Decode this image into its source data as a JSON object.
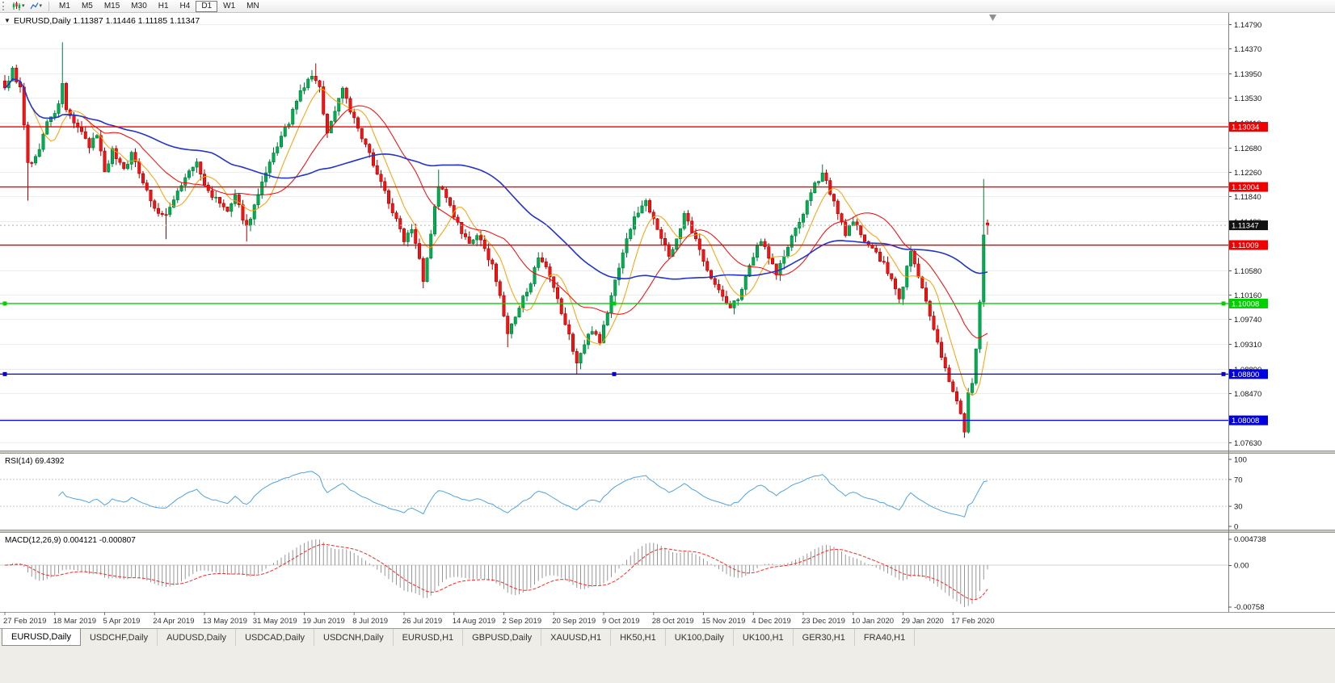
{
  "toolbar": {
    "timeframes": [
      "M1",
      "M5",
      "M15",
      "M30",
      "H1",
      "H4",
      "D1",
      "W1",
      "MN"
    ],
    "active_timeframe": "D1"
  },
  "icons": {
    "symbol_menu": "▼",
    "caret": "▾"
  },
  "panes": {
    "main_header": "EURUSD,Daily 1.11387 1.11446 1.11185 1.11347",
    "rsi_header": "RSI(14) 69.4392",
    "macd_header": "MACD(12,26,9) 0.004121 -0.000807"
  },
  "tabs": {
    "items": [
      {
        "label": "EURUSD,Daily",
        "active": true
      },
      {
        "label": "USDCHF,Daily"
      },
      {
        "label": "AUDUSD,Daily"
      },
      {
        "label": "USDCAD,Daily"
      },
      {
        "label": "USDCNH,Daily"
      },
      {
        "label": "EURUSD,H1"
      },
      {
        "label": "GBPUSD,Daily"
      },
      {
        "label": "XAUUSD,H1"
      },
      {
        "label": "HK50,H1"
      },
      {
        "label": "UK100,Daily"
      },
      {
        "label": "UK100,H1"
      },
      {
        "label": "GER30,H1"
      },
      {
        "label": "FRA40,H1"
      }
    ]
  },
  "chart_data": {
    "type": "candlestick",
    "symbol": "EURUSD",
    "timeframe": "Daily",
    "current_bar": {
      "open": 1.11387,
      "high": 1.11446,
      "low": 1.11185,
      "close": 1.11347
    },
    "y_axis": {
      "max": 1.1479,
      "min": 1.0763,
      "tick_labels": [
        "1.14790",
        "1.14370",
        "1.13950",
        "1.13530",
        "1.13110",
        "1.12680",
        "1.12260",
        "1.11840",
        "1.11420",
        "1.11000",
        "1.10580",
        "1.10160",
        "1.09740",
        "1.09310",
        "1.08890",
        "1.08470",
        "1.08050",
        "1.07630"
      ]
    },
    "x_axis": {
      "labels": [
        "27 Feb 2019",
        "18 Mar 2019",
        "5 Apr 2019",
        "24 Apr 2019",
        "13 May 2019",
        "31 May 2019",
        "19 Jun 2019",
        "8 Jul 2019",
        "26 Jul 2019",
        "14 Aug 2019",
        "2 Sep 2019",
        "20 Sep 2019",
        "9 Oct 2019",
        "28 Oct 2019",
        "15 Nov 2019",
        "4 Dec 2019",
        "23 Dec 2019",
        "10 Jan 2020",
        "29 Jan 2020",
        "17 Feb 2020"
      ],
      "bars_per_label": 13
    },
    "levels": [
      {
        "price": 1.13034,
        "label": "1.13034",
        "color": "#f00000"
      },
      {
        "price": 1.12004,
        "label": "1.12004",
        "color": "#f00000"
      },
      {
        "price": 1.11009,
        "label": "1.11009",
        "color": "#f00000"
      },
      {
        "price": 1.10008,
        "label": "1.10008",
        "color": "#00d000",
        "handles": true
      },
      {
        "price": 1.088,
        "label": "1.08800",
        "color": "#0000e0",
        "handles": true
      },
      {
        "price": 1.08008,
        "label": "1.08008",
        "color": "#0000e0"
      }
    ],
    "current_price": {
      "value": 1.11347,
      "label": "1.11347",
      "color": "#111111"
    },
    "candles": {
      "count": 257,
      "seed": 9,
      "anchors": [
        [
          0,
          1.137
        ],
        [
          2,
          1.14
        ],
        [
          4,
          1.1368
        ],
        [
          6,
          1.124
        ],
        [
          8,
          1.1248
        ],
        [
          11,
          1.131
        ],
        [
          14,
          1.1338
        ],
        [
          15,
          1.138
        ],
        [
          16,
          1.133
        ],
        [
          19,
          1.1302
        ],
        [
          22,
          1.1268
        ],
        [
          24,
          1.1292
        ],
        [
          26,
          1.1228
        ],
        [
          28,
          1.1262
        ],
        [
          31,
          1.1232
        ],
        [
          33,
          1.1256
        ],
        [
          36,
          1.1212
        ],
        [
          39,
          1.1162
        ],
        [
          42,
          1.1148
        ],
        [
          44,
          1.1182
        ],
        [
          47,
          1.1216
        ],
        [
          50,
          1.1242
        ],
        [
          52,
          1.1202
        ],
        [
          55,
          1.1178
        ],
        [
          58,
          1.1158
        ],
        [
          60,
          1.1182
        ],
        [
          63,
          1.1132
        ],
        [
          65,
          1.1168
        ],
        [
          68,
          1.1222
        ],
        [
          71,
          1.1272
        ],
        [
          74,
          1.1312
        ],
        [
          77,
          1.1362
        ],
        [
          80,
          1.1392
        ],
        [
          82,
          1.1368
        ],
        [
          84,
          1.1292
        ],
        [
          86,
          1.1332
        ],
        [
          88,
          1.1372
        ],
        [
          90,
          1.1332
        ],
        [
          93,
          1.1282
        ],
        [
          96,
          1.1242
        ],
        [
          99,
          1.1192
        ],
        [
          102,
          1.1142
        ],
        [
          104,
          1.1112
        ],
        [
          106,
          1.1132
        ],
        [
          108,
          1.1082
        ],
        [
          109,
          1.1042
        ],
        [
          111,
          1.1122
        ],
        [
          113,
          1.1205
        ],
        [
          115,
          1.118
        ],
        [
          117,
          1.115
        ],
        [
          119,
          1.112
        ],
        [
          121,
          1.11
        ],
        [
          123,
          1.112
        ],
        [
          125,
          1.109
        ],
        [
          127,
          1.107
        ],
        [
          129,
          1.101
        ],
        [
          131,
          1.095
        ],
        [
          133,
          1.0975
        ],
        [
          135,
          1.101
        ],
        [
          137,
          1.104
        ],
        [
          139,
          1.1075
        ],
        [
          141,
          1.106
        ],
        [
          143,
          1.1025
        ],
        [
          145,
          1.0985
        ],
        [
          147,
          1.0945
        ],
        [
          149,
          1.09
        ],
        [
          151,
          1.093
        ],
        [
          153,
          1.0958
        ],
        [
          155,
          1.0938
        ],
        [
          157,
          1.0985
        ],
        [
          159,
          1.104
        ],
        [
          161,
          1.109
        ],
        [
          163,
          1.113
        ],
        [
          165,
          1.116
        ],
        [
          167,
          1.1175
        ],
        [
          169,
          1.115
        ],
        [
          171,
          1.1112
        ],
        [
          173,
          1.1082
        ],
        [
          175,
          1.1112
        ],
        [
          177,
          1.1152
        ],
        [
          179,
          1.1122
        ],
        [
          181,
          1.1092
        ],
        [
          183,
          1.1062
        ],
        [
          185,
          1.1032
        ],
        [
          187,
          1.1012
        ],
        [
          189,
          1.0992
        ],
        [
          191,
          1.1012
        ],
        [
          193,
          1.1042
        ],
        [
          195,
          1.1082
        ],
        [
          197,
          1.1112
        ],
        [
          199,
          1.1082
        ],
        [
          201,
          1.1052
        ],
        [
          203,
          1.1082
        ],
        [
          205,
          1.1112
        ],
        [
          207,
          1.1142
        ],
        [
          209,
          1.1172
        ],
        [
          211,
          1.1202
        ],
        [
          213,
          1.1228
        ],
        [
          215,
          1.1192
        ],
        [
          217,
          1.1152
        ],
        [
          219,
          1.1122
        ],
        [
          221,
          1.1138
        ],
        [
          223,
          1.1122
        ],
        [
          225,
          1.1102
        ],
        [
          227,
          1.1086
        ],
        [
          229,
          1.1066
        ],
        [
          231,
          1.1042
        ],
        [
          233,
          1.1006
        ],
        [
          236,
          1.109
        ],
        [
          238,
          1.1048
        ],
        [
          240,
          1.1002
        ],
        [
          242,
          1.0952
        ],
        [
          244,
          1.0912
        ],
        [
          246,
          1.0872
        ],
        [
          248,
          1.0832
        ],
        [
          250,
          1.0786
        ],
        [
          251,
          1.0846
        ],
        [
          252,
          1.0866
        ],
        [
          253,
          1.0922
        ],
        [
          254,
          1.0998
        ],
        [
          255,
          1.1113
        ],
        [
          256,
          1.11347
        ]
      ],
      "spikes": [
        {
          "i": 6,
          "l": 1.1177
        },
        {
          "i": 15,
          "h": 1.1448
        },
        {
          "i": 42,
          "l": 1.1111
        },
        {
          "i": 63,
          "l": 1.1107
        },
        {
          "i": 81,
          "h": 1.1412
        },
        {
          "i": 104,
          "l": 1.1101
        },
        {
          "i": 109,
          "l": 1.1027
        },
        {
          "i": 113,
          "h": 1.123
        },
        {
          "i": 131,
          "l": 1.0926
        },
        {
          "i": 149,
          "l": 1.0879
        },
        {
          "i": 213,
          "h": 1.1239
        },
        {
          "i": 250,
          "l": 1.0778
        },
        {
          "i": 255,
          "h": 1.1214
        }
      ],
      "last": {
        "o": 1.11387,
        "h": 1.11446,
        "l": 1.11185,
        "c": 1.11347
      }
    },
    "indicators": {
      "moving_averages": [
        {
          "period": 8,
          "color": "#ff9d00",
          "width": 1
        },
        {
          "period": 21,
          "color": "#ff0000",
          "width": 1
        },
        {
          "period": 55,
          "color": "#2333cc",
          "width": 1.6
        }
      ],
      "rsi": {
        "period": 14,
        "value": 69.4392,
        "axis_labels": [
          100,
          70,
          30,
          0
        ],
        "levels_dotted": [
          70,
          30
        ]
      },
      "macd": {
        "fast": 12,
        "slow": 26,
        "signal": 9,
        "value": 0.004121,
        "signal_value": -0.000807,
        "axis_top": "0.004738",
        "axis_zero": "0.00",
        "axis_bottom": "-0.00758"
      }
    },
    "render": {
      "bar_start": 6,
      "bar_step": 4.75,
      "noise": 0.0011,
      "wick": 0.0011,
      "colors": {
        "up": "#00b050",
        "up_border": "#007a38",
        "down": "#f21515",
        "down_border": "#a80000",
        "rsi": "#4da3e3",
        "macd_hist": "#979797",
        "macd_signal": "#ff2626",
        "grid": "#ececec",
        "divider": "#ccc8c0"
      }
    }
  }
}
